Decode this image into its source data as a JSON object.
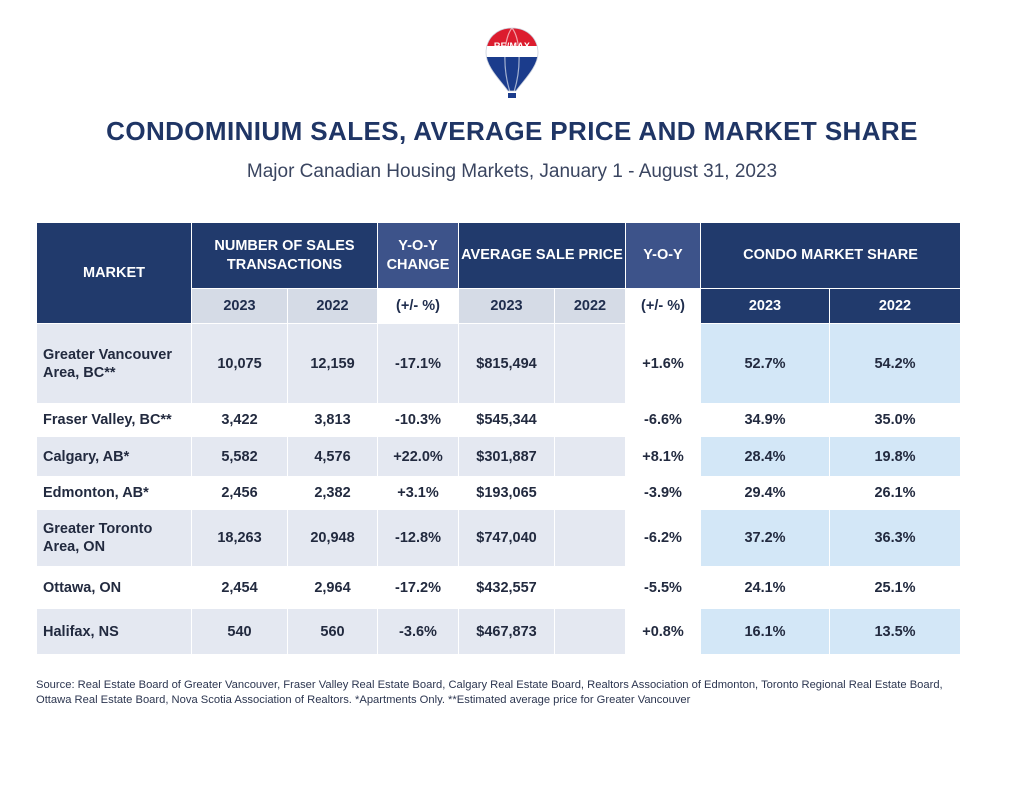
{
  "brand": {
    "logo_text": "RE/MAX"
  },
  "title": "CONDOMINIUM SALES, AVERAGE PRICE AND MARKET SHARE",
  "subtitle": "Major Canadian Housing Markets, January 1 - August 31, 2023",
  "table": {
    "headers": {
      "market": "MARKET",
      "sales": "NUMBER OF SALES TRANSACTIONS",
      "sales_yoy": "Y-O-Y CHANGE",
      "avg_price": "AVERAGE SALE PRICE",
      "price_yoy": "Y-O-Y",
      "share": "CONDO MARKET SHARE",
      "year_a": "2023",
      "year_b": "2022",
      "pct": "(+/- %)"
    },
    "rows": [
      {
        "market": "Greater Vancouver Area, BC**",
        "sales_2023": "10,075",
        "sales_2022": "12,159",
        "sales_yoy": "-17.1%",
        "price_2023": "$815,494",
        "price_2022": "",
        "price_yoy": "+1.6%",
        "share_2023": "52.7%",
        "share_2022": "54.2%"
      },
      {
        "market": "Fraser Valley, BC**",
        "sales_2023": "3,422",
        "sales_2022": "3,813",
        "sales_yoy": "-10.3%",
        "price_2023": "$545,344",
        "price_2022": "",
        "price_yoy": "-6.6%",
        "share_2023": "34.9%",
        "share_2022": "35.0%"
      },
      {
        "market": "Calgary, AB*",
        "sales_2023": "5,582",
        "sales_2022": "4,576",
        "sales_yoy": "+22.0%",
        "price_2023": "$301,887",
        "price_2022": "",
        "price_yoy": "+8.1%",
        "share_2023": "28.4%",
        "share_2022": "19.8%"
      },
      {
        "market": "Edmonton, AB*",
        "sales_2023": "2,456",
        "sales_2022": "2,382",
        "sales_yoy": "+3.1%",
        "price_2023": "$193,065",
        "price_2022": "",
        "price_yoy": "-3.9%",
        "share_2023": "29.4%",
        "share_2022": "26.1%"
      },
      {
        "market": "Greater Toronto Area, ON",
        "sales_2023": "18,263",
        "sales_2022": "20,948",
        "sales_yoy": "-12.8%",
        "price_2023": "$747,040",
        "price_2022": "",
        "price_yoy": "-6.2%",
        "share_2023": "37.2%",
        "share_2022": "36.3%"
      },
      {
        "market": "Ottawa, ON",
        "sales_2023": "2,454",
        "sales_2022": "2,964",
        "sales_yoy": "-17.2%",
        "price_2023": "$432,557",
        "price_2022": "",
        "price_yoy": "-5.5%",
        "share_2023": "24.1%",
        "share_2022": "25.1%"
      },
      {
        "market": "Halifax, NS",
        "sales_2023": "540",
        "sales_2022": "560",
        "sales_yoy": "-3.6%",
        "price_2023": "$467,873",
        "price_2022": "",
        "price_yoy": "+0.8%",
        "share_2023": "16.1%",
        "share_2022": "13.5%"
      }
    ]
  },
  "source": "Source: Real Estate Board of Greater Vancouver, Fraser Valley Real Estate Board, Calgary Real Estate Board, Realtors Association of Edmonton, Toronto Regional Real Estate Board, Ottawa Real Estate Board, Nova Scotia Association of Realtors. *Apartments Only. **Estimated average price for Greater Vancouver",
  "colors": {
    "navy": "#213a6c",
    "mid_blue": "#3d538a",
    "light_grey": "#d5dbe6",
    "share_blue": "#d3e7f7",
    "balloon_red": "#dc1c2e"
  }
}
